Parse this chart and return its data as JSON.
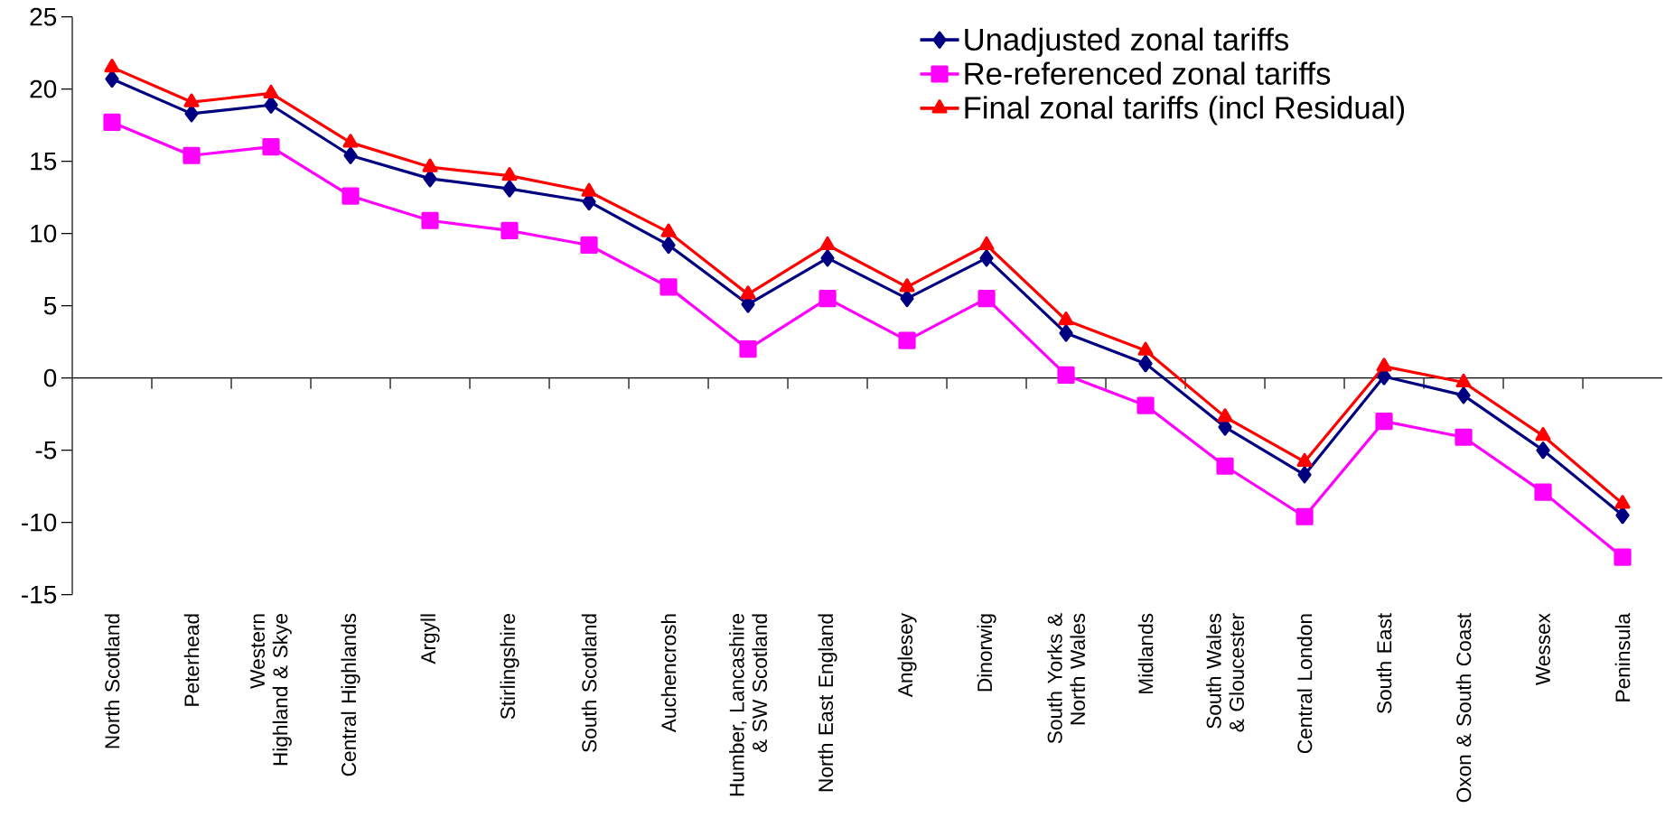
{
  "chart_data": {
    "type": "line",
    "categories": [
      "North Scotland",
      "Peterhead",
      "Western Highland & Skye",
      "Central Highlands",
      "Argyll",
      "Stirlingshire",
      "South Scotland",
      "Auchencrosh",
      "Humber, Lancashire & SW Scotland",
      "North East England",
      "Anglesey",
      "Dinorwig",
      "South Yorks & North Wales",
      "Midlands",
      "South Wales & Gloucester",
      "Central London",
      "South East",
      "Oxon & South Coast",
      "Wessex",
      "Peninsula"
    ],
    "series": [
      {
        "name": "Unadjusted zonal tariffs",
        "color": "#000080",
        "marker": "diamond",
        "values": [
          20.7,
          18.3,
          18.9,
          15.4,
          13.8,
          13.1,
          12.2,
          9.2,
          5.1,
          8.3,
          5.5,
          8.3,
          3.1,
          1.0,
          -3.4,
          -6.7,
          0.1,
          -1.2,
          -5.0,
          -9.5
        ]
      },
      {
        "name": "Re-referenced zonal tariffs",
        "color": "#ff00ff",
        "marker": "square",
        "values": [
          17.7,
          15.4,
          16.0,
          12.6,
          10.9,
          10.2,
          9.2,
          6.3,
          2.0,
          5.5,
          2.6,
          5.5,
          0.2,
          -1.9,
          -6.1,
          -9.6,
          -3.0,
          -4.1,
          -7.9,
          -12.4
        ]
      },
      {
        "name": "Final zonal tariffs (incl Residual)",
        "color": "#ff0000",
        "marker": "triangle",
        "values": [
          21.5,
          19.1,
          19.7,
          16.3,
          14.6,
          14.0,
          12.9,
          10.1,
          5.8,
          9.2,
          6.3,
          9.2,
          4.0,
          1.9,
          -2.7,
          -5.8,
          0.8,
          -0.3,
          -4.0,
          -8.7
        ]
      }
    ],
    "ylim": [
      -15,
      25
    ],
    "yticks": [
      -15,
      -10,
      -5,
      0,
      5,
      10,
      15,
      20,
      25
    ],
    "legend": "top right",
    "line_style": "solid"
  }
}
